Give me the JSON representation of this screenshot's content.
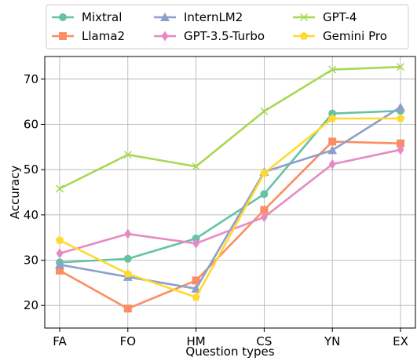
{
  "chart_data": {
    "type": "line",
    "xlabel": "Question types",
    "ylabel": "Accuracy",
    "categories": [
      "FA",
      "FO",
      "HM",
      "CS",
      "YN",
      "EX"
    ],
    "ylim": [
      15,
      75
    ],
    "yticks": [
      20,
      30,
      40,
      50,
      60,
      70
    ],
    "grid": true,
    "legend_position": "top",
    "series": [
      {
        "name": "Mixtral",
        "color": "#66c2a5",
        "marker": "circle",
        "values": [
          29.5,
          30.3,
          34.8,
          44.6,
          62.4,
          63.0
        ]
      },
      {
        "name": "Llama2",
        "color": "#fc8d62",
        "marker": "square",
        "values": [
          27.7,
          19.3,
          25.5,
          41.1,
          56.2,
          55.8
        ]
      },
      {
        "name": "InternLM2",
        "color": "#8da0cb",
        "marker": "triangle",
        "values": [
          29.0,
          26.3,
          23.7,
          49.5,
          54.3,
          63.8
        ]
      },
      {
        "name": "GPT-3.5-Turbo",
        "color": "#e78ac3",
        "marker": "diamond",
        "values": [
          31.5,
          35.8,
          33.7,
          39.5,
          51.2,
          54.4
        ]
      },
      {
        "name": "GPT-4",
        "color": "#a6d854",
        "marker": "x",
        "values": [
          45.8,
          53.3,
          50.7,
          62.9,
          72.1,
          72.7
        ]
      },
      {
        "name": "Gemini Pro",
        "color": "#ffd92f",
        "marker": "pentagon",
        "values": [
          34.4,
          27.0,
          21.8,
          49.2,
          61.3,
          61.3
        ]
      }
    ]
  }
}
